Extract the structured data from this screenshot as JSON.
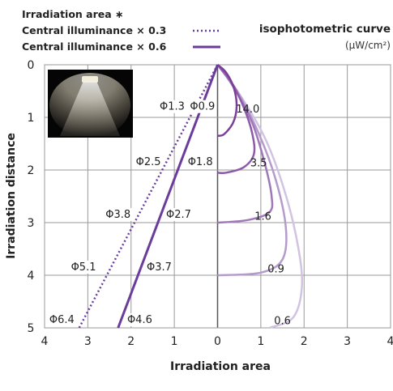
{
  "chart_data": {
    "type": "line",
    "title": "isophotometric curve",
    "unit": "(μW/cm²)",
    "xlabel": "Irradiation area",
    "ylabel": "Irradiation distance",
    "xlim": [
      -4,
      4
    ],
    "ylim": [
      0,
      5
    ],
    "x_ticks": [
      {
        "v": -4,
        "label": "4"
      },
      {
        "v": -3,
        "label": "3"
      },
      {
        "v": -2,
        "label": "2"
      },
      {
        "v": -1,
        "label": "1"
      },
      {
        "v": 0,
        "label": "0"
      },
      {
        "v": 1,
        "label": "1"
      },
      {
        "v": 2,
        "label": "2"
      },
      {
        "v": 3,
        "label": "3"
      },
      {
        "v": 4,
        "label": "4"
      }
    ],
    "y_ticks": [
      0,
      1,
      2,
      3,
      4,
      5
    ],
    "grid": true,
    "legend": {
      "title": "Irradiation area ∗",
      "items": [
        {
          "label": "Central illuminance × 0.3",
          "style": "dotted",
          "color": "#6a3d9a"
        },
        {
          "label": "Central illuminance × 0.6",
          "style": "solid",
          "color": "#6a3d9a"
        }
      ]
    },
    "series": [
      {
        "name": "Central illuminance × 0.3",
        "style": "dotted",
        "color": "#6a3d9a",
        "points": [
          [
            0,
            0
          ],
          [
            -3.2,
            5
          ]
        ]
      },
      {
        "name": "Central illuminance × 0.6",
        "style": "solid",
        "color": "#6a3d9a",
        "points": [
          [
            0,
            0
          ],
          [
            -2.3,
            5
          ]
        ]
      }
    ],
    "isophotes": [
      {
        "label": "14.0",
        "color": "#7b3f98",
        "points": [
          [
            0,
            0
          ],
          [
            0.2,
            0.15
          ],
          [
            0.38,
            0.45
          ],
          [
            0.44,
            0.8
          ],
          [
            0.36,
            1.1
          ],
          [
            0.15,
            1.32
          ],
          [
            0,
            1.35
          ]
        ]
      },
      {
        "label": "3.5",
        "color": "#8c5aa8",
        "points": [
          [
            0,
            0
          ],
          [
            0.3,
            0.3
          ],
          [
            0.6,
            0.8
          ],
          [
            0.8,
            1.3
          ],
          [
            0.84,
            1.7
          ],
          [
            0.6,
            1.95
          ],
          [
            0.2,
            2.05
          ],
          [
            0,
            2.05
          ]
        ]
      },
      {
        "label": "1.6",
        "color": "#9f78b9",
        "points": [
          [
            0,
            0
          ],
          [
            0.35,
            0.4
          ],
          [
            0.8,
            1.1
          ],
          [
            1.1,
            1.9
          ],
          [
            1.25,
            2.5
          ],
          [
            1.2,
            2.8
          ],
          [
            0.7,
            2.95
          ],
          [
            0,
            3
          ]
        ]
      },
      {
        "label": "0.9",
        "color": "#b59bcb",
        "points": [
          [
            0,
            0
          ],
          [
            0.45,
            0.5
          ],
          [
            0.95,
            1.3
          ],
          [
            1.35,
            2.2
          ],
          [
            1.58,
            3.1
          ],
          [
            1.5,
            3.7
          ],
          [
            1.0,
            3.95
          ],
          [
            0,
            4
          ]
        ]
      },
      {
        "label": "0.6",
        "color": "#d1c3e1",
        "points": [
          [
            0,
            0
          ],
          [
            0.5,
            0.55
          ],
          [
            1.1,
            1.4
          ],
          [
            1.55,
            2.4
          ],
          [
            1.85,
            3.4
          ],
          [
            1.95,
            4.2
          ],
          [
            1.75,
            4.8
          ],
          [
            1.2,
            5.0
          ]
        ]
      }
    ],
    "annotations": [
      {
        "text": "Φ0.9",
        "x": -0.35,
        "y": 0.78
      },
      {
        "text": "Φ1.3",
        "x": -1.05,
        "y": 0.78
      },
      {
        "text": "Φ1.8",
        "x": -0.4,
        "y": 1.83
      },
      {
        "text": "Φ2.5",
        "x": -1.6,
        "y": 1.83
      },
      {
        "text": "Φ2.7",
        "x": -0.9,
        "y": 2.83
      },
      {
        "text": "Φ3.8",
        "x": -2.3,
        "y": 2.83
      },
      {
        "text": "Φ3.7",
        "x": -1.35,
        "y": 3.83
      },
      {
        "text": "Φ5.1",
        "x": -3.1,
        "y": 3.83
      },
      {
        "text": "Φ4.6",
        "x": -1.8,
        "y": 4.83
      },
      {
        "text": "Φ6.4",
        "x": -3.6,
        "y": 4.83
      }
    ],
    "inset": {
      "type": "photo",
      "subject": "light-cone"
    }
  }
}
